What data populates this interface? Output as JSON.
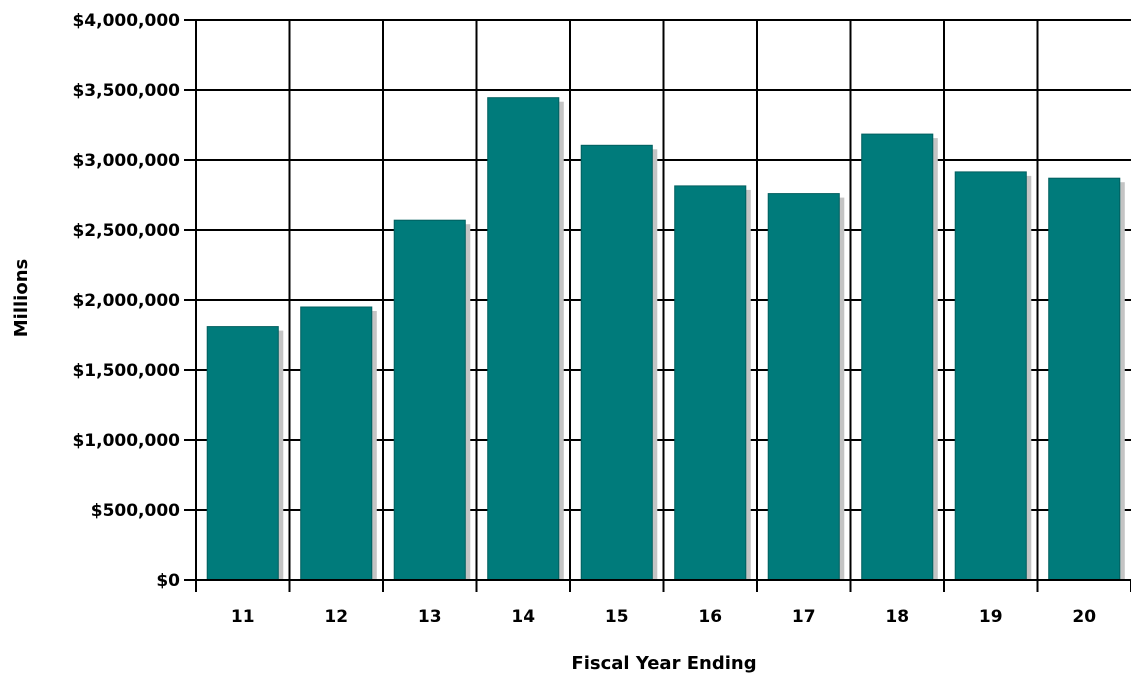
{
  "chart_data": {
    "type": "bar",
    "title": "",
    "xlabel": "Fiscal Year Ending",
    "ylabel": "Millions",
    "categories": [
      "11",
      "12",
      "13",
      "14",
      "15",
      "16",
      "17",
      "18",
      "19",
      "20"
    ],
    "values": [
      1810000,
      1950000,
      2570000,
      3445000,
      3105000,
      2815000,
      2760000,
      3185000,
      2915000,
      2870000
    ],
    "ylim": [
      0,
      4000000
    ],
    "yticks": [
      0,
      500000,
      1000000,
      1500000,
      2000000,
      2500000,
      3000000,
      3500000,
      4000000
    ],
    "ytick_labels": [
      "$0",
      "$500,000",
      "$1,000,000",
      "$1,500,000",
      "$2,000,000",
      "$2,500,000",
      "$3,000,000",
      "$3,500,000",
      "$4,000,000"
    ],
    "grid": true,
    "legend": "none",
    "colors": {
      "bar": "#007b7b",
      "shadow": "#c4c4c4",
      "grid": "#000000"
    }
  }
}
